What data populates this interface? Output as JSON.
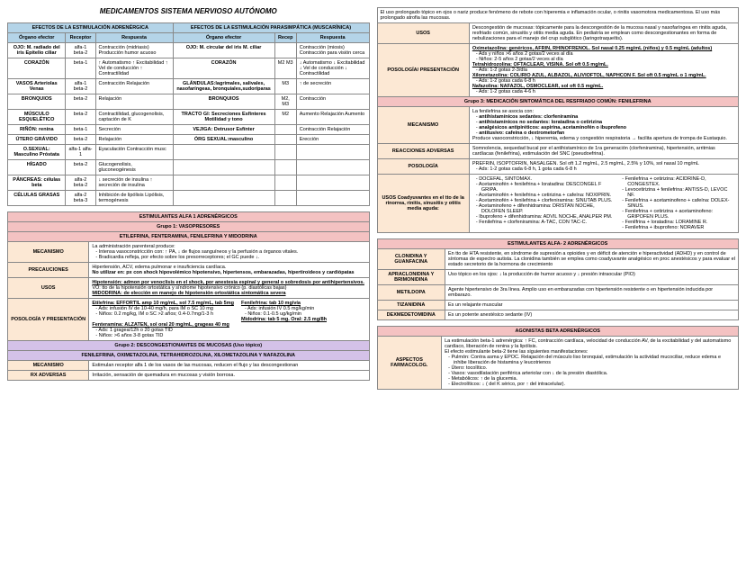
{
  "main_title": "MEDICAMENTOS SISTEMA NERVIOSO AUTÓNOMO",
  "t1": {
    "h1": "EFECTOS DE LA ESTIMULACIÓN ADRENÉRGICA",
    "h2": "EFECTOS DE LA ESTIMULACIÓN PARASIMPÁTICA (MUSCARÍNICA)",
    "c1": "Órgano efector",
    "c2": "Receptor",
    "c3": "Respuesta",
    "c4": "Órgano efector",
    "c5": "Recep",
    "c6": "Respuesta",
    "r": [
      [
        "OJO: M. radiado del iris Epitelio ciliar",
        "alfa-1 beta-2",
        "Contracción (midriasis) Producción humor acuoso",
        "OJO: M. circular del iris M. ciliar",
        "",
        "Contracción (miosis) Contracción para visión cerca"
      ],
      [
        "CORAZÓN",
        "beta-1",
        "↑ Automatismo ↑ Excitabilidad ↑ Vel de conducción ↑ Contractilidad",
        "CORAZÓN",
        "M2 M3",
        "↓ Automatismo ↓ Excitabilidad ↓ Vel de conducción ↓ Contractilidad"
      ],
      [
        "VASOS Arteriolas Venas",
        "alfa-1 beta-2",
        "Contracción Relajación",
        "GLÁNDULAS:lagrimales, salivales, nasofaríngeas, bronquiales,sudoríparas",
        "M3",
        "↑ de secreción"
      ],
      [
        "BRONQUIOS",
        "beta-2",
        "Relajación",
        "BRONQUIOS",
        "M2, M3",
        "Contracción"
      ],
      [
        "MÚSCULO ESQUELÉTICO",
        "beta-2",
        "Contractilidad, glucogenolisis, captación de K",
        "TRACTO GI: Secreciones Esfínteres Motilidad y tono",
        "M2",
        "Aumento Relajación Aumento"
      ],
      [
        "RIÑÓN: renina",
        "beta-1",
        "Secreción",
        "VEJIGA: Detrusor Esfínter",
        "",
        "Contracción Relajación"
      ],
      [
        "ÚTERO GRÁVIDO",
        "beta-2",
        "Relajación",
        "ÓRG SEXUAL:masculino",
        "",
        "Erección"
      ],
      [
        "O.SEXUAL: Masculino Próstata",
        "alfa-1 alfa-1",
        "Eyaculación Contracción musc",
        "",
        "",
        ""
      ],
      [
        "HÍGADO",
        "beta-2",
        "Glucogenolisis, gluconeogénesis",
        "",
        "",
        ""
      ],
      [
        "PÁNCREAS: células beta",
        "alfa-2 beta-2",
        "↓ secreción de insulina ↑ secreción de insulina",
        "",
        "",
        ""
      ],
      [
        "CÉLULAS GRASAS",
        "alfa-2 beta-3",
        "Inhibición de lipólisis Lipólisis, termogénesis",
        "",
        "",
        ""
      ]
    ]
  },
  "t2": {
    "title": "ESTIMULANTES ALFA 1 ADRENÉRGICOS",
    "sub1": "Grupo 1: VASOPRESORES",
    "sub1b": "ETILEFRINA, FENTERAMINA, FENILEFRINA Y MIDODRINA",
    "mec": "La administración parenteral produce:",
    "mec1": "Intensa vasoconstricción con: ↑ PA, ↓ de flujos sanguíneos y la perfusión a órganos vitales.",
    "mec2": "Bradicardia refleja, por efecto sobre los presorreceptores; el GC puede ↓.",
    "prec1": "Hipertensión, ACV, edema pulmonar e insuficiencia cardíaca.",
    "prec2": "No utilizar en: px con shock hipovolémico hipotensivo, hipertensos, embarazadas, hipertiroideos y cardiópatas",
    "uso1": "Hipotensión: admon por venoclisis en el shock, por anestesia espinal y general o sobredosis por antihipertensivos.",
    "uso2": "VO: tto de la hipotensión ortostática y síndrome hipotensivo crónico (p. diastólicas bajas)",
    "uso3": "MIDODRINA: de elección en manejo de hipotensión ortostática sintomática severa",
    "pos_e": "Etilefrina: EFFORTIL amp 10 mg/mL, sol 7.5 mg/mL, tab 5mg",
    "pos_e1": "Ads: infusión IV de 10-40 mg/h, para IM o SC 10 mg",
    "pos_e2": "Niños: 0.2 mg/kg, IM o SC >2 años; 0.4-0.7mg/1-3 h",
    "pos_f": "Fenilefrina: tab 10 mg/vía",
    "pos_f1": "Ads: infusión IV 0.5 mg/kg/min",
    "pos_f2": "Niños: 0.1-0.5 ug/kg/min",
    "pos_m": "Midodrina: tab 5 mg. Oral: 2.5 mg/8h",
    "pos_ft": "Fenteramina: ALZATEN, sol oral 20 mg/mL, grageas 40 mg",
    "pos_ft1": "Ads: 1 gragea/12h o 20 gotas TID",
    "pos_ft2": "Niños: >6 años 3-8 gotas TID",
    "sub2": "Grupo 2: DESCONGESTIONANTES DE MUCOSAS (Uso tópico)",
    "sub2b": "FENILEFRINA, OXIMETAZOLINA, TETRAHIDROZOLINA, XILOMETAZOLINA Y NAFAZOLINA",
    "mec3": "Estimulan receptor alfa 1 de los vasos de las mucosas, reducen el flujo y las descongestionan",
    "rx": "Irritación, sensación de quemadura en mucosas y visión borrosa."
  },
  "t3": {
    "intro": "El uso prolongado tópico en ojos o nariz produce fenómeno de rebote con hiperemia e inflamación ocular, o rinitis vasomotora medicamentosa. El uso más prolongado atrofia las mucosas.",
    "uso1": "Descongestión de mucosas: tópicamente para la descongestión de la mucosa nasal y nasofaríngea en rinitis aguda, resfriado común, sinusitis y otitis media aguda. En pediatría se emplean como descongestionantes en forma de nebulizaciones para el manejo del crup subglótico (laringotraqueítis).",
    "pos_ox": "Oximetazolina: genéricos, AFRIN, RHINOFRENOL. Sol nasal 0.25 mg/mL (niños) y 0.5 mg/mL (adultos)",
    "pos_ox1": "Ads y niños >6 años 2 gotas/2 veces al día",
    "pos_ox2": "Niños: 2-5 años 2 gotas/2 veces al día",
    "pos_te": "Tetrahidrozolina: OFTACLEAR, VISINA. Sol oft 0.5 mg/mL.",
    "pos_te1": "Ads: 1-2 gotas 2-3/día",
    "pos_xi": "Xilometazolina: COLIRIO AZUL, ALBAZOL, ALIVIOFTOL, NAPHCON F. Sol oft 0.5 mg/mL o 1 mg/mL.",
    "pos_xi1": "Ads: 1-2 gotas cada 6-8 h",
    "pos_na": "Nafazolina: NAFAZOL, OSMOCLEAR, sol oft 0.5 mg/mL.",
    "pos_na1": "Ads: 1-2 gotas cada 4-6 h",
    "g3": "Grupo 3: MEDICACIÓN SINTOMÁTICA DEL RESFRIADO COMÚN: FENILEFRINA",
    "mec": "La fenilefrina se asocia con:",
    "mec1": "antihistamínicos sedantes: clorfeniramina",
    "mec2": "antihistamínicos no sedantes: loratadina o cetirizina",
    "mec3": "analgésicos antipiréticos: aspirina, acetaminofén o ibuprofeno",
    "mec4": "antitusivo: cafeína o dextrometorfan",
    "mec5": "Produce vasoconstricción, ↓ hiperemia, edema y congestión respiratoria → facilita apertura de trompa de Eustaquio.",
    "rxa": "Somnolencia, sequedad bucal por el antihistamínico de 1ra generación (clorfeniramina), hipertensión, arritmias cardíacas (fenilefrina), estimulación del SNC (pseudoefrina).",
    "posol": "PREFRIN, ISOPTOFRIN, NASALGEN. Sol oft 1.2 mg/mL, 2.5 mg/mL, 2.5% y 10%, sol nasal 10 mg/mL",
    "posol1": "Ads: 1-2 gotas cada 6-8 h, 1 gota cada 6-8 h",
    "coad_t": "USOS Coadyuvantes en el tto de la rinorrea, rinitis, sinusitis y otitis media aguda:",
    "coad": [
      "DOCEFAL, SINTOMAX.",
      "Acetaminofén + fenilefrina + loratadina: DESCONGEL F GRIPA.",
      "Acetaminofén + fenilefrina + cetirizina + cafeína: NOXIPRIN.",
      "Acetaminofén + fenilefrina + clorfeniramina: SINUTAB PLUS.",
      "Acetaminofeno + difenhidramina: DRISTAN NOCHE, DOLOFEN SLEEP.",
      "Ibuprofeno + difenhidramina: ADVIL NOCHE, ANALPER PM.",
      "Fenilefrina + clorfeniramina: A-TAC, CON TAC-C."
    ],
    "coad2": [
      "Fenilefrina + cetirizina: ACIDRINE-D, CONGESTEX.",
      "Levocetirizina + fenilefrina: ANTISS-D, LEVOC NF.",
      "Fenilefrina + acetaminofeno + cafeína: DOLEX-SINUS.",
      "Fenilefrina + cetirizina + acetaminofeno: GRIPOFEN PLUS.",
      "Fenilfrina + loratadina: LORAMINE R.",
      "Fenilefrina + ibuprofeno: NORAVER"
    ]
  },
  "t4": {
    "title": "ESTIMULANTES ALFA- 2 ADRENÉRGICOS",
    "r": [
      [
        "CLONIDINA Y GUANFACINA",
        "En tto de HTA resistente, en síndrome de supresión a opioides y en déficit de atención e hiperactividad (ADHD) y en control de síntomas de espectro autista.\nLa clonidina también se emplea como coadyuvante analgésico en proc anestésicos y para evaluar el estado secretorio de la hormona de crecimiento"
      ],
      [
        "APRACLONIDINA Y BRIMONIDINA",
        "Uso tópico en los ojos: ↓ la producción de humor acuoso y ↓ presión intraocular (PIO)"
      ],
      [
        "METILDOPA",
        "Agente hipertensivo de 3ra línea. Amplio uso en embarazadas con hipertensión resistente o en hipertensión inducida por embarazo."
      ],
      [
        "TIZANIDINA",
        "Es un relajante muscular"
      ],
      [
        "DEXMEDETOMIDINA",
        "Es un potente anestésico sedante (IV)"
      ]
    ]
  },
  "t5": {
    "title": "AGONISTAS BETA ADRENÉRGICOS",
    "b1": "La estimulación beta-1 adrenérgica: ↑ FC, contracción cardíaca, velocidad de conducción AV, de la excitabilidad y del automatismo cardíaco, liberación de renina y la lipólisis.",
    "b2": "El efecto estimulante beta-2 tiene las siguientes manifestaciones:",
    "b2l": [
      "Pulmón: Contra asma y EPOC. Relajación del músculo liso bronquial, estimulación la actividad mucociliar, reduce edema e inhibe liberación de histamina y leucotrienos",
      "Útero: tocolítico.",
      "Vasos: vasodilatación periférica arteriolar con ↓ de la presión diastólica.",
      "Metabólicos: ↑ de la glucemia.",
      "Electrolíticos: ↓ ( del K sérico, por ↑ del intracelular)."
    ]
  }
}
